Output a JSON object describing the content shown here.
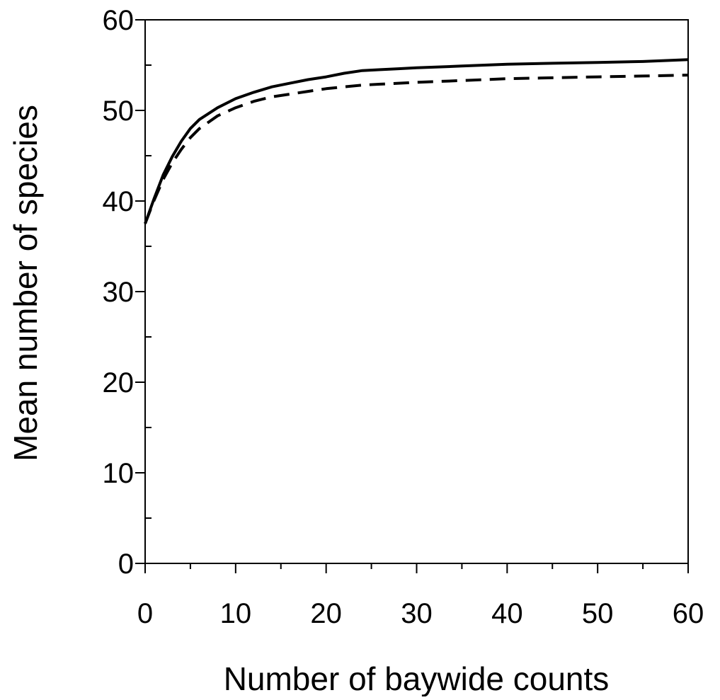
{
  "chart_data": {
    "type": "line",
    "title": "",
    "xlabel": "Number of baywide counts",
    "ylabel": "Mean number of species",
    "xlim": [
      0,
      60
    ],
    "ylim": [
      0,
      60
    ],
    "xticks": [
      0,
      10,
      20,
      30,
      40,
      50,
      60
    ],
    "yticks": [
      0,
      10,
      20,
      30,
      40,
      50,
      60
    ],
    "xtick_labels": [
      "0",
      "10",
      "20",
      "30",
      "40",
      "50",
      "60"
    ],
    "ytick_labels": [
      "0",
      "10",
      "20",
      "30",
      "40",
      "50",
      "60"
    ],
    "x_minor_step": 5,
    "y_minor_step": 5,
    "grid": false,
    "legend": "none",
    "series": [
      {
        "style": "solid",
        "color": "#000000",
        "x": [
          0,
          1,
          2,
          3,
          4,
          5,
          6,
          8,
          10,
          12,
          14,
          16,
          18,
          20,
          22,
          24,
          26,
          28,
          30,
          35,
          40,
          45,
          50,
          55,
          60
        ],
        "values": [
          37.5,
          40.3,
          42.9,
          44.9,
          46.6,
          48.0,
          49.0,
          50.3,
          51.3,
          52.0,
          52.6,
          53.0,
          53.4,
          53.7,
          54.1,
          54.4,
          54.5,
          54.6,
          54.7,
          54.9,
          55.1,
          55.2,
          55.3,
          55.4,
          55.6
        ]
      },
      {
        "style": "dashed",
        "color": "#000000",
        "x": [
          0,
          1,
          2,
          3,
          4,
          5,
          6,
          8,
          10,
          12,
          14,
          16,
          18,
          20,
          22,
          24,
          26,
          28,
          30,
          35,
          40,
          45,
          50,
          55,
          60
        ],
        "values": [
          37.5,
          40.1,
          42.4,
          44.2,
          45.7,
          47.0,
          48.0,
          49.4,
          50.3,
          51.0,
          51.5,
          51.8,
          52.1,
          52.4,
          52.6,
          52.8,
          52.9,
          53.0,
          53.1,
          53.3,
          53.5,
          53.6,
          53.7,
          53.8,
          53.9
        ]
      }
    ]
  }
}
